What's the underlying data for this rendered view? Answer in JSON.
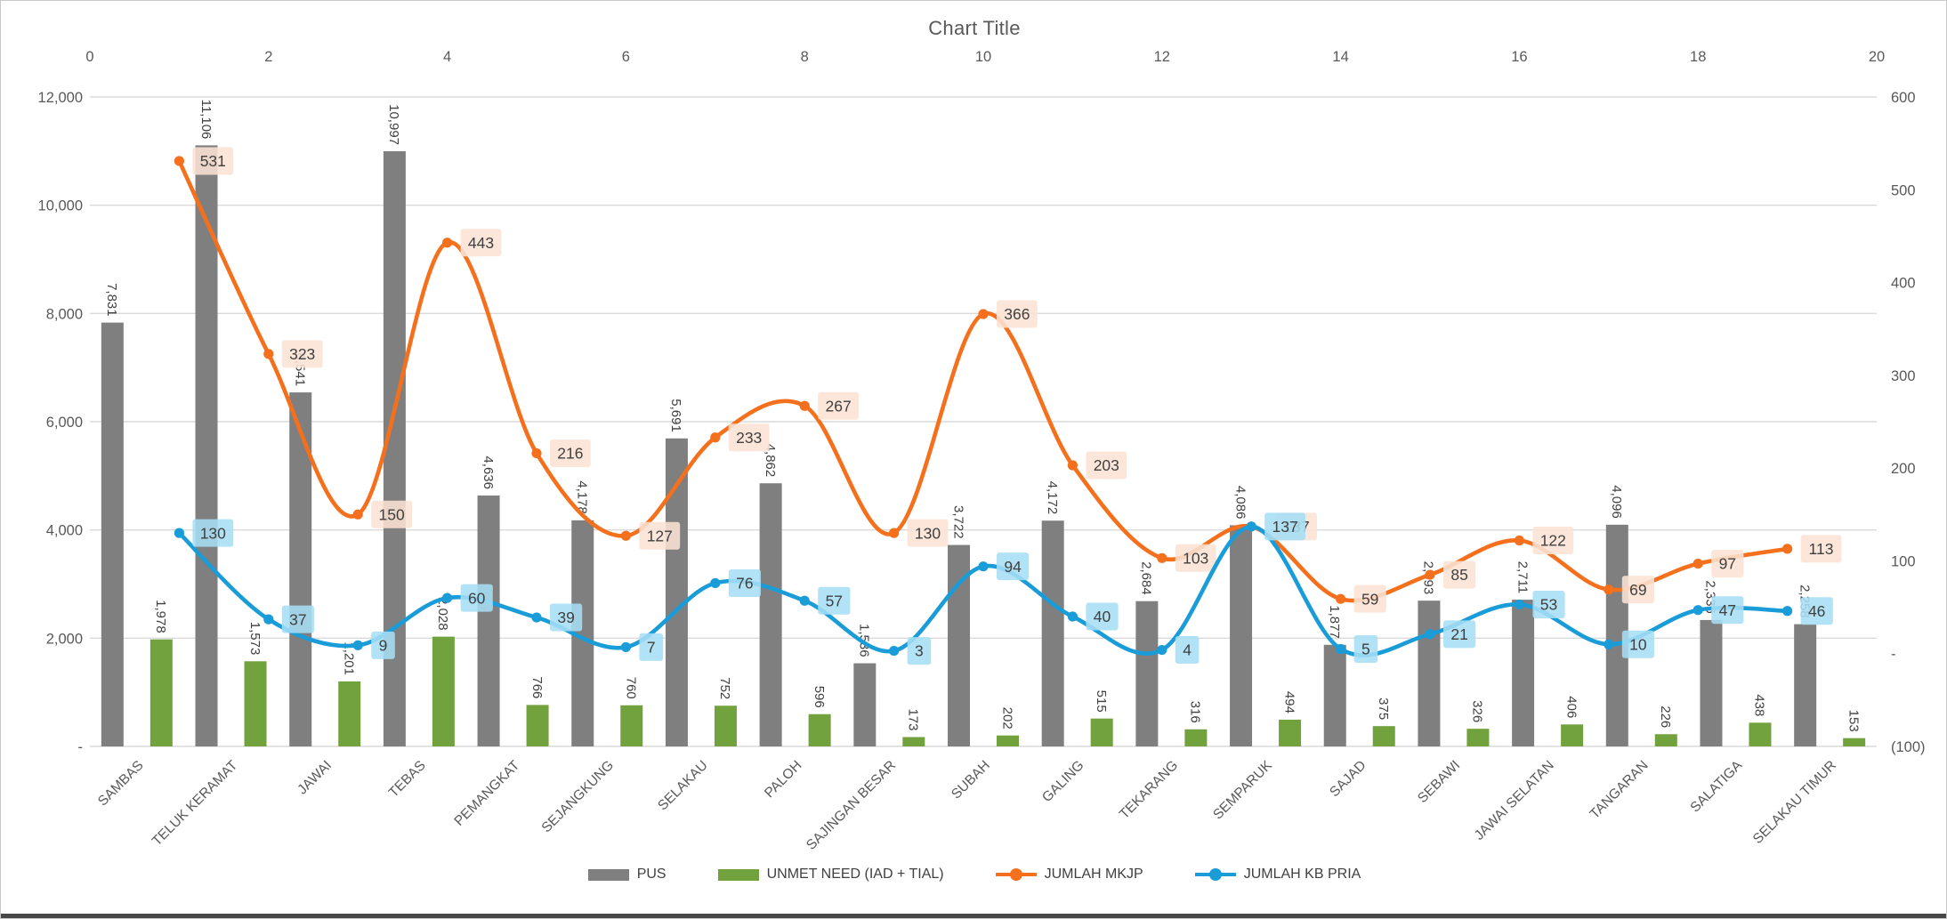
{
  "chart_data": {
    "type": "combo-bar-line",
    "title": "Chart Title",
    "categories": [
      "SAMBAS",
      "TELUK KERAMAT",
      "JAWAI",
      "TEBAS",
      "PEMANGKAT",
      "SEJANGKUNG",
      "SELAKAU",
      "PALOH",
      "SAJINGAN BESAR",
      "SUBAH",
      "GALING",
      "TEKARANG",
      "SEMPARUK",
      "SAJAD",
      "SEBAWI",
      "JAWAI SELATAN",
      "TANGARAN",
      "SALATIGA",
      "SELAKAU TIMUR"
    ],
    "series": [
      {
        "name": "PUS",
        "type": "bar",
        "axis": "left",
        "color": "#7F7F7F",
        "values": [
          7831,
          11106,
          6541,
          10997,
          4636,
          4178,
          5691,
          4862,
          1536,
          3722,
          4172,
          2684,
          4086,
          1877,
          2693,
          2711,
          4096,
          2336,
          2258
        ]
      },
      {
        "name": "UNMET NEED (IAD + TIAL)",
        "type": "bar",
        "axis": "left",
        "color": "#72A23D",
        "values": [
          1978,
          1573,
          1201,
          2028,
          766,
          760,
          752,
          596,
          173,
          202,
          515,
          316,
          494,
          375,
          326,
          406,
          226,
          438,
          153
        ]
      },
      {
        "name": "JUMLAH MKJP",
        "type": "line",
        "axis": "right",
        "color": "#F4701D",
        "label_bg": "#FAE3D4",
        "values": [
          531,
          323,
          150,
          443,
          216,
          127,
          233,
          267,
          130,
          366,
          203,
          103,
          137,
          59,
          85,
          122,
          69,
          97,
          113
        ],
        "label_extra_dx": {
          "12": 13
        }
      },
      {
        "name": "JUMLAH KB PRIA",
        "type": "line",
        "axis": "right",
        "color": "#199CD8",
        "label_bg": "#A6DEF5",
        "values": [
          130,
          37,
          9,
          60,
          39,
          7,
          76,
          57,
          3,
          94,
          40,
          4,
          137,
          5,
          21,
          53,
          10,
          47,
          46
        ]
      }
    ],
    "left_axis": {
      "min": 0,
      "max": 12000,
      "step": 2000,
      "tick_labels": [
        "-",
        "2,000",
        "4,000",
        "6,000",
        "8,000",
        "10,000",
        "12,000"
      ]
    },
    "right_axis": {
      "min": -100,
      "max": 600,
      "step": 100,
      "tick_labels": [
        "(100)",
        "-",
        "100",
        "200",
        "300",
        "400",
        "500",
        "600"
      ]
    },
    "top_axis": {
      "min": 0,
      "max": 20,
      "step": 2,
      "tick_labels": [
        "0",
        "2",
        "4",
        "6",
        "8",
        "10",
        "12",
        "14",
        "16",
        "18",
        "20"
      ]
    },
    "grid": true,
    "legend_position": "bottom",
    "colors": {
      "gridline": "#DADADA",
      "axis_text": "#595959",
      "data_label_text": "#404040",
      "background": "#FFFFFF"
    }
  }
}
